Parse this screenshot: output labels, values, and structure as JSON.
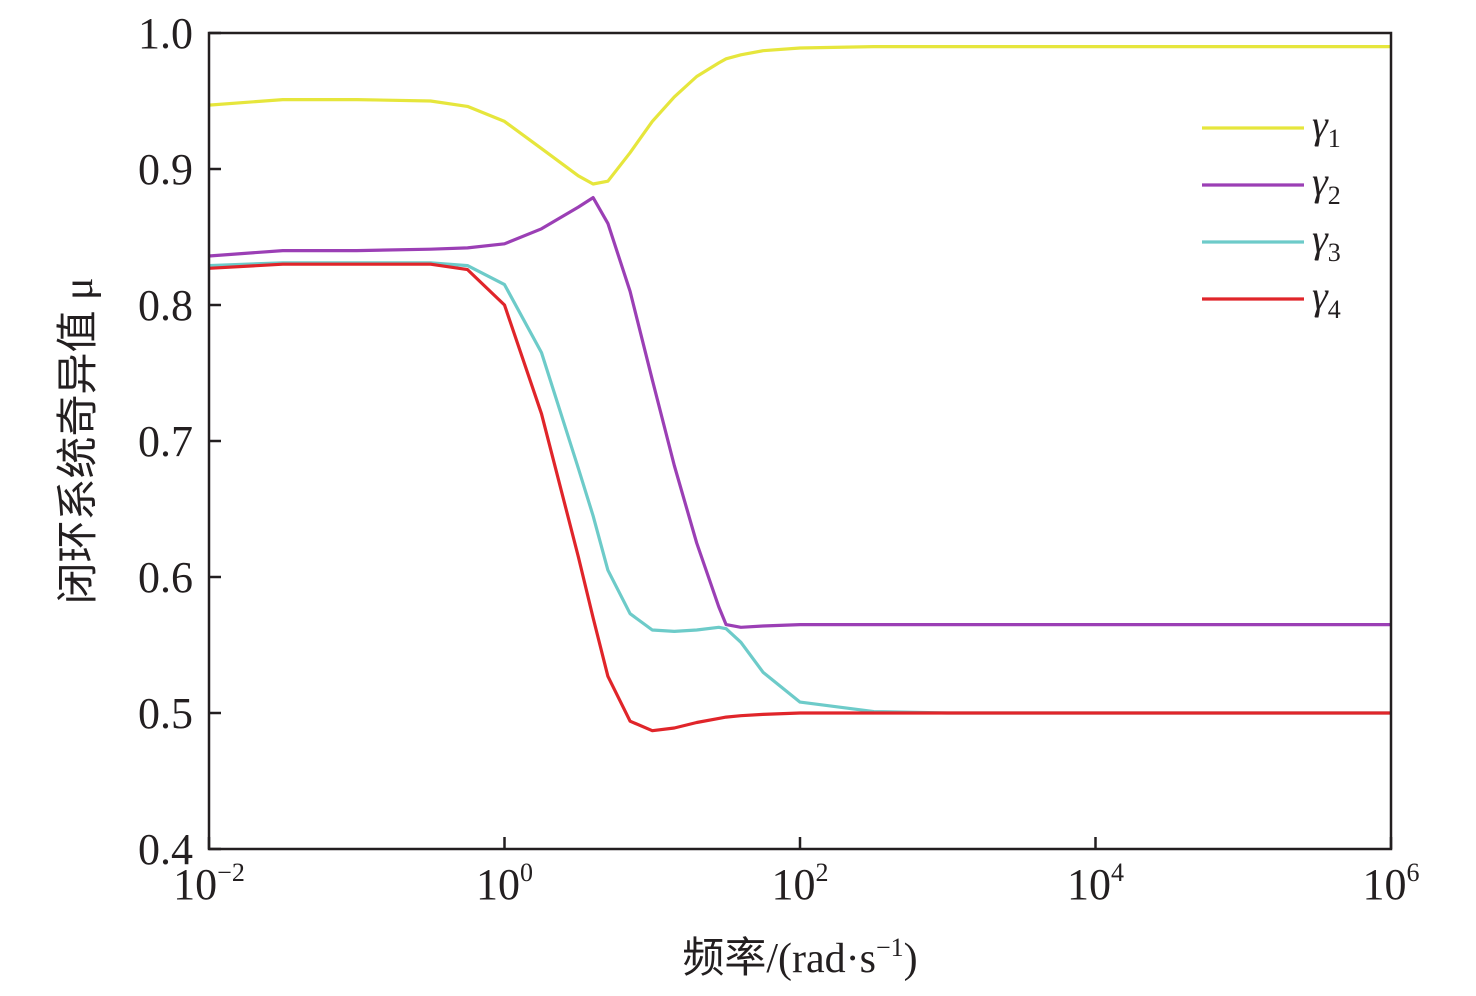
{
  "chart_data": {
    "type": "line",
    "xlabel": "频率/(rad·s",
    "xlabel_sup": "−1",
    "xlabel_close": ")",
    "ylabel": "闭环系统奇异值 μ",
    "xscale": "log",
    "xlim": [
      0.01,
      1000000
    ],
    "ylim": [
      0.4,
      1.0
    ],
    "x_ticks": [
      {
        "base": "10",
        "exp": "−2",
        "value": 0.01
      },
      {
        "base": "10",
        "exp": "0",
        "value": 1
      },
      {
        "base": "10",
        "exp": "2",
        "value": 100
      },
      {
        "base": "10",
        "exp": "4",
        "value": 10000
      },
      {
        "base": "10",
        "exp": "6",
        "value": 1000000
      }
    ],
    "y_ticks": [
      "0.4",
      "0.5",
      "0.6",
      "0.7",
      "0.8",
      "0.9",
      "1.0"
    ],
    "grid": false,
    "legend_position": "top-right",
    "x": [
      0.01,
      0.0316,
      0.1,
      0.316,
      0.562,
      1,
      1.78,
      3.16,
      3.98,
      5.01,
      7.08,
      10,
      14.1,
      20,
      28.2,
      31.6,
      39.8,
      56.2,
      100,
      316,
      1000,
      10000,
      100000,
      1000000
    ],
    "series": [
      {
        "name": "γ1",
        "label_base": "γ",
        "label_sub": "1",
        "color": "#e6e63c",
        "values": [
          0.947,
          0.951,
          0.951,
          0.95,
          0.946,
          0.935,
          0.915,
          0.895,
          0.889,
          0.891,
          0.912,
          0.935,
          0.953,
          0.968,
          0.978,
          0.981,
          0.984,
          0.987,
          0.989,
          0.99,
          0.99,
          0.99,
          0.99,
          0.99
        ]
      },
      {
        "name": "γ2",
        "label_base": "γ",
        "label_sub": "2",
        "color": "#9b3fb5",
        "values": [
          0.836,
          0.84,
          0.84,
          0.841,
          0.842,
          0.845,
          0.856,
          0.872,
          0.879,
          0.86,
          0.81,
          0.745,
          0.682,
          0.625,
          0.578,
          0.565,
          0.563,
          0.564,
          0.565,
          0.565,
          0.565,
          0.565,
          0.565,
          0.565
        ]
      },
      {
        "name": "γ3",
        "label_base": "γ",
        "label_sub": "3",
        "color": "#6dcbc9",
        "values": [
          0.829,
          0.831,
          0.831,
          0.831,
          0.829,
          0.815,
          0.765,
          0.68,
          0.645,
          0.605,
          0.573,
          0.561,
          0.56,
          0.561,
          0.563,
          0.562,
          0.552,
          0.53,
          0.508,
          0.501,
          0.5,
          0.5,
          0.5,
          0.5
        ]
      },
      {
        "name": "γ4",
        "label_base": "γ",
        "label_sub": "4",
        "color": "#e0252a",
        "values": [
          0.827,
          0.83,
          0.83,
          0.83,
          0.826,
          0.8,
          0.72,
          0.615,
          0.57,
          0.527,
          0.494,
          0.487,
          0.489,
          0.493,
          0.496,
          0.497,
          0.498,
          0.499,
          0.5,
          0.5,
          0.5,
          0.5,
          0.5,
          0.5
        ]
      }
    ]
  }
}
